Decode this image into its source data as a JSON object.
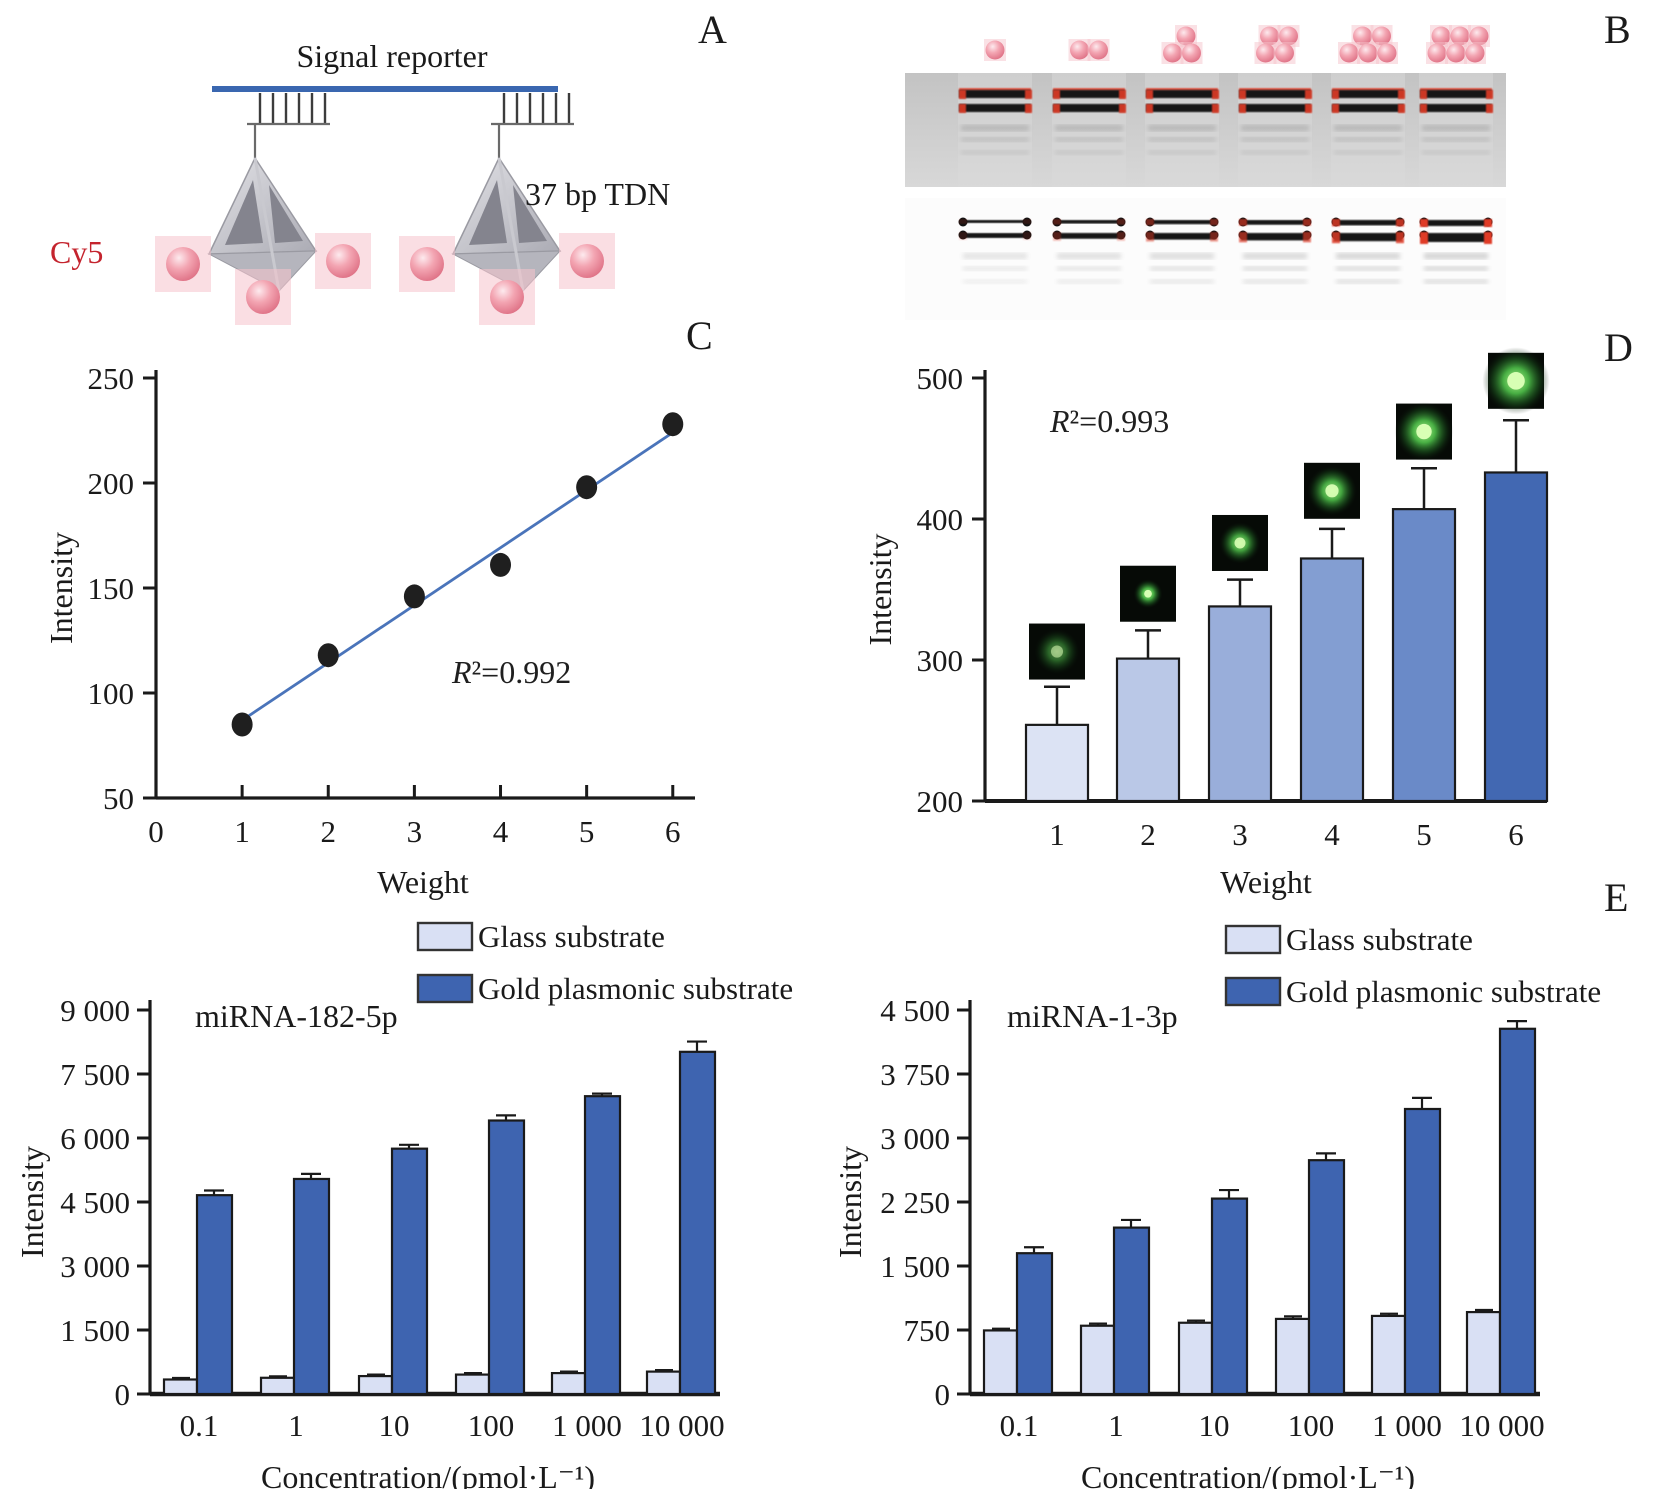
{
  "panels": {
    "a_label": "A",
    "b_label": "B",
    "c_label": "C",
    "d_label": "D",
    "e_label": "E"
  },
  "schematic": {
    "signal_reporter_label": "Signal reporter",
    "tdn_label": "37 bp TDN",
    "cy5_label": "Cy5",
    "colors": {
      "reporter_line": "#3a67b0",
      "cy5_text": "#c4242e",
      "ball_glow": "#f6c3cc",
      "tetra_light": "#d0d0d6",
      "tetra_dark": "#84848e"
    }
  },
  "gel": {
    "lane_ball_counts": [
      1,
      2,
      3,
      4,
      5,
      6
    ],
    "ball_rows": [
      [
        1
      ],
      [
        2
      ],
      [
        1,
        2
      ],
      [
        2,
        2
      ],
      [
        2,
        3
      ],
      [
        3,
        3
      ]
    ],
    "top_gel_bg": "#cacaca",
    "bottom_gel_bg": "#fcfcfc",
    "band_color": "#161616",
    "band_red": "#e03a28"
  },
  "chart_data": [
    {
      "id": "C",
      "type": "scatter",
      "xlabel": "Weight",
      "ylabel": "Intensity",
      "annotation": "R²=0.992",
      "x": [
        1,
        2,
        3,
        4,
        5,
        6
      ],
      "y": [
        85,
        118,
        146,
        161,
        198,
        228
      ],
      "fit": {
        "x1": 1,
        "y1": 87,
        "x2": 6,
        "y2": 224
      },
      "xticks": [
        0,
        1,
        2,
        3,
        4,
        5,
        6
      ],
      "yticks": [
        50,
        100,
        150,
        200,
        250
      ],
      "xlim": [
        0,
        6.2
      ],
      "ylim": [
        50,
        250
      ],
      "grid": false,
      "point_color": "#1f1f1f",
      "line_color": "#4a74ba"
    },
    {
      "id": "D",
      "type": "bar",
      "xlabel": "Weight",
      "ylabel": "Intensity",
      "annotation": "R²=0.993",
      "categories": [
        "1",
        "2",
        "3",
        "4",
        "5",
        "6"
      ],
      "values": [
        254,
        301,
        338,
        372,
        407,
        433
      ],
      "errors": [
        27,
        20,
        19,
        21,
        29,
        37
      ],
      "bar_colors": [
        "#dce3f4",
        "#bac8e7",
        "#99aeda",
        "#839ed2",
        "#6a8ac8",
        "#4268b2"
      ],
      "yticks": [
        200,
        300,
        400,
        500
      ],
      "ylim": [
        200,
        500
      ],
      "grid": false,
      "spots": {
        "centers": [
          306,
          347,
          383,
          420,
          462,
          498
        ],
        "radii": [
          11,
          7,
          10,
          12,
          14,
          16
        ],
        "brightness": [
          0.55,
          1,
          0.9,
          0.95,
          1,
          1
        ]
      }
    },
    {
      "id": "E1",
      "type": "grouped-bar",
      "title": "miRNA-182-5p",
      "xlabel": "Concentration/(pmol·L⁻¹)",
      "ylabel": "Intensity",
      "categories": [
        "0.1",
        "1",
        "10",
        "100",
        "1 000",
        "10 000"
      ],
      "series": [
        {
          "name": "Glass substrate",
          "color": "#d9e0f4",
          "values": [
            340,
            380,
            420,
            455,
            490,
            525
          ],
          "errors": [
            35,
            35,
            35,
            35,
            35,
            35
          ]
        },
        {
          "name": "Gold plasmonic substrate",
          "color": "#3e64b0",
          "values": [
            4660,
            5040,
            5750,
            6410,
            6980,
            8020
          ],
          "errors": [
            110,
            120,
            90,
            120,
            60,
            240
          ]
        }
      ],
      "ytick_values": [
        0,
        1500,
        3000,
        4500,
        6000,
        7500,
        9000
      ],
      "ytick_labels": [
        "0",
        "1 500",
        "3 000",
        "4 500",
        "6 000",
        "7 500",
        "9 000"
      ],
      "ylim": [
        0,
        9000
      ],
      "grid": false,
      "legend_position": "top-right"
    },
    {
      "id": "E2",
      "type": "grouped-bar",
      "title": "miRNA-1-3p",
      "xlabel": "Concentration/(pmol·L⁻¹)",
      "ylabel": "Intensity",
      "categories": [
        "0.1",
        "1",
        "10",
        "100",
        "1 000",
        "10 000"
      ],
      "series": [
        {
          "name": "Glass substrate",
          "color": "#d9e0f4",
          "values": [
            745,
            800,
            835,
            880,
            915,
            960
          ],
          "errors": [
            20,
            25,
            25,
            30,
            25,
            25
          ]
        },
        {
          "name": "Gold plasmonic substrate",
          "color": "#3e64b0",
          "values": [
            1650,
            1950,
            2290,
            2740,
            3340,
            4280
          ],
          "errors": [
            70,
            90,
            100,
            80,
            130,
            90
          ]
        }
      ],
      "ytick_values": [
        0,
        750,
        1500,
        2250,
        3000,
        3750,
        4500
      ],
      "ytick_labels": [
        "0",
        "750",
        "1 500",
        "2 250",
        "3 000",
        "3 750",
        "4 500"
      ],
      "ylim": [
        0,
        4500
      ],
      "grid": false,
      "legend_position": "top-right"
    }
  ]
}
